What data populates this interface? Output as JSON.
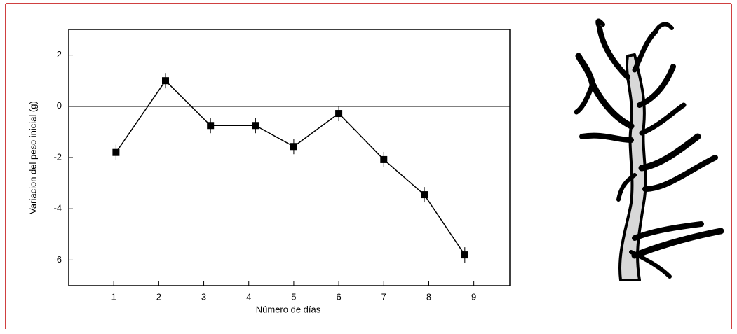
{
  "chart_data": {
    "type": "line",
    "x": [
      1.05,
      2.15,
      3.15,
      4.15,
      5.0,
      6.0,
      7.0,
      7.9,
      8.8
    ],
    "series": [
      {
        "color": "#000000",
        "values": [
          -1.8,
          1.0,
          -0.75,
          -0.75,
          -1.57,
          -0.28,
          -2.08,
          -3.45,
          -5.8
        ],
        "errors": [
          0.3,
          0.3,
          0.3,
          0.3,
          0.3,
          0.3,
          0.3,
          0.3,
          0.3
        ]
      }
    ],
    "xlim": [
      0,
      9.8
    ],
    "ylim": [
      -7,
      3
    ],
    "xticks": [
      1,
      2,
      3,
      4,
      5,
      6,
      7,
      8,
      9
    ],
    "yticks": [
      -6,
      -4,
      -2,
      0,
      2
    ],
    "hline": 0,
    "xlabel": "Número de días",
    "ylabel": "Variacion del peso inicial (g)"
  }
}
